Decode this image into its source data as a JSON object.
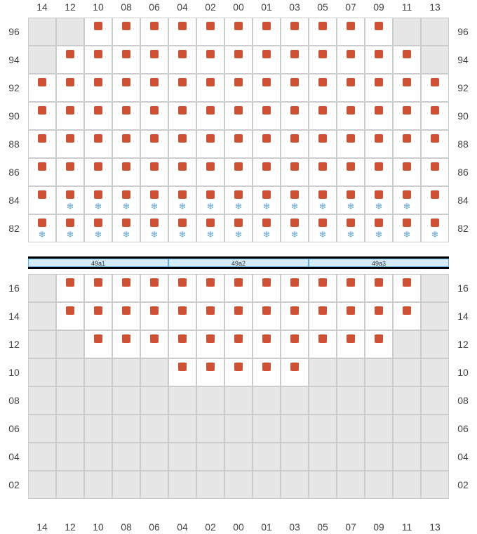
{
  "columns": [
    "14",
    "12",
    "10",
    "08",
    "06",
    "04",
    "02",
    "00",
    "01",
    "03",
    "05",
    "07",
    "09",
    "11",
    "13"
  ],
  "upper_rows": [
    "96",
    "94",
    "92",
    "90",
    "88",
    "86",
    "84",
    "82"
  ],
  "lower_rows": [
    "16",
    "14",
    "12",
    "10",
    "08",
    "06",
    "04",
    "02"
  ],
  "divider_segments": [
    "49a1",
    "49a2",
    "49a3"
  ],
  "colors": {
    "seat": "#cc5233",
    "cold": "#5fa8dd",
    "gray": "#e6e6e6",
    "grid_border": "#cccccc",
    "divider_bg": "#d4ecfa",
    "black": "#000000"
  },
  "symbols": {
    "snowflake": "❄"
  },
  "upper_grid": [
    {
      "row": "96",
      "cells": [
        {
          "t": "g"
        },
        {
          "t": "g"
        },
        {
          "t": "s"
        },
        {
          "t": "s"
        },
        {
          "t": "s"
        },
        {
          "t": "s"
        },
        {
          "t": "s"
        },
        {
          "t": "s"
        },
        {
          "t": "s"
        },
        {
          "t": "s"
        },
        {
          "t": "s"
        },
        {
          "t": "s"
        },
        {
          "t": "s"
        },
        {
          "t": "g"
        },
        {
          "t": "g"
        }
      ]
    },
    {
      "row": "94",
      "cells": [
        {
          "t": "g"
        },
        {
          "t": "s"
        },
        {
          "t": "s"
        },
        {
          "t": "s"
        },
        {
          "t": "s"
        },
        {
          "t": "s"
        },
        {
          "t": "s"
        },
        {
          "t": "s"
        },
        {
          "t": "s"
        },
        {
          "t": "s"
        },
        {
          "t": "s"
        },
        {
          "t": "s"
        },
        {
          "t": "s"
        },
        {
          "t": "s"
        },
        {
          "t": "g"
        }
      ]
    },
    {
      "row": "92",
      "cells": [
        {
          "t": "s"
        },
        {
          "t": "s"
        },
        {
          "t": "s"
        },
        {
          "t": "s"
        },
        {
          "t": "s"
        },
        {
          "t": "s"
        },
        {
          "t": "s"
        },
        {
          "t": "s"
        },
        {
          "t": "s"
        },
        {
          "t": "s"
        },
        {
          "t": "s"
        },
        {
          "t": "s"
        },
        {
          "t": "s"
        },
        {
          "t": "s"
        },
        {
          "t": "s"
        }
      ]
    },
    {
      "row": "90",
      "cells": [
        {
          "t": "s"
        },
        {
          "t": "s"
        },
        {
          "t": "s"
        },
        {
          "t": "s"
        },
        {
          "t": "s"
        },
        {
          "t": "s"
        },
        {
          "t": "s"
        },
        {
          "t": "s"
        },
        {
          "t": "s"
        },
        {
          "t": "s"
        },
        {
          "t": "s"
        },
        {
          "t": "s"
        },
        {
          "t": "s"
        },
        {
          "t": "s"
        },
        {
          "t": "s"
        }
      ]
    },
    {
      "row": "88",
      "cells": [
        {
          "t": "s"
        },
        {
          "t": "s"
        },
        {
          "t": "s"
        },
        {
          "t": "s"
        },
        {
          "t": "s"
        },
        {
          "t": "s"
        },
        {
          "t": "s"
        },
        {
          "t": "s"
        },
        {
          "t": "s"
        },
        {
          "t": "s"
        },
        {
          "t": "s"
        },
        {
          "t": "s"
        },
        {
          "t": "s"
        },
        {
          "t": "s"
        },
        {
          "t": "s"
        }
      ]
    },
    {
      "row": "86",
      "cells": [
        {
          "t": "s"
        },
        {
          "t": "s"
        },
        {
          "t": "s"
        },
        {
          "t": "s"
        },
        {
          "t": "s"
        },
        {
          "t": "s"
        },
        {
          "t": "s"
        },
        {
          "t": "s"
        },
        {
          "t": "s"
        },
        {
          "t": "s"
        },
        {
          "t": "s"
        },
        {
          "t": "s"
        },
        {
          "t": "s"
        },
        {
          "t": "s"
        },
        {
          "t": "s"
        }
      ]
    },
    {
      "row": "84",
      "cells": [
        {
          "t": "s"
        },
        {
          "t": "sc"
        },
        {
          "t": "sc"
        },
        {
          "t": "sc"
        },
        {
          "t": "sc"
        },
        {
          "t": "sc"
        },
        {
          "t": "sc"
        },
        {
          "t": "sc"
        },
        {
          "t": "sc"
        },
        {
          "t": "sc"
        },
        {
          "t": "sc"
        },
        {
          "t": "sc"
        },
        {
          "t": "sc"
        },
        {
          "t": "sc"
        },
        {
          "t": "s"
        }
      ]
    },
    {
      "row": "82",
      "cells": [
        {
          "t": "sc"
        },
        {
          "t": "sc"
        },
        {
          "t": "sc"
        },
        {
          "t": "sc"
        },
        {
          "t": "sc"
        },
        {
          "t": "sc"
        },
        {
          "t": "sc"
        },
        {
          "t": "sc"
        },
        {
          "t": "sc"
        },
        {
          "t": "sc"
        },
        {
          "t": "sc"
        },
        {
          "t": "sc"
        },
        {
          "t": "sc"
        },
        {
          "t": "sc"
        },
        {
          "t": "sc"
        }
      ]
    }
  ],
  "lower_grid": [
    {
      "row": "16",
      "cells": [
        {
          "t": "g"
        },
        {
          "t": "s"
        },
        {
          "t": "s"
        },
        {
          "t": "s"
        },
        {
          "t": "s"
        },
        {
          "t": "s"
        },
        {
          "t": "s"
        },
        {
          "t": "s"
        },
        {
          "t": "s"
        },
        {
          "t": "s"
        },
        {
          "t": "s"
        },
        {
          "t": "s"
        },
        {
          "t": "s"
        },
        {
          "t": "s"
        },
        {
          "t": "g"
        }
      ]
    },
    {
      "row": "14",
      "cells": [
        {
          "t": "g"
        },
        {
          "t": "s"
        },
        {
          "t": "s"
        },
        {
          "t": "s"
        },
        {
          "t": "s"
        },
        {
          "t": "s"
        },
        {
          "t": "s"
        },
        {
          "t": "s"
        },
        {
          "t": "s"
        },
        {
          "t": "s"
        },
        {
          "t": "s"
        },
        {
          "t": "s"
        },
        {
          "t": "s"
        },
        {
          "t": "s"
        },
        {
          "t": "g"
        }
      ]
    },
    {
      "row": "12",
      "cells": [
        {
          "t": "g"
        },
        {
          "t": "g"
        },
        {
          "t": "s"
        },
        {
          "t": "s"
        },
        {
          "t": "s"
        },
        {
          "t": "s"
        },
        {
          "t": "s"
        },
        {
          "t": "s"
        },
        {
          "t": "s"
        },
        {
          "t": "s"
        },
        {
          "t": "s"
        },
        {
          "t": "s"
        },
        {
          "t": "s"
        },
        {
          "t": "g"
        },
        {
          "t": "g"
        }
      ]
    },
    {
      "row": "10",
      "cells": [
        {
          "t": "g"
        },
        {
          "t": "g"
        },
        {
          "t": "g"
        },
        {
          "t": "g"
        },
        {
          "t": "g"
        },
        {
          "t": "s"
        },
        {
          "t": "s"
        },
        {
          "t": "s"
        },
        {
          "t": "s"
        },
        {
          "t": "s"
        },
        {
          "t": "g"
        },
        {
          "t": "g"
        },
        {
          "t": "g"
        },
        {
          "t": "g"
        },
        {
          "t": "g"
        }
      ]
    },
    {
      "row": "08",
      "cells": [
        {
          "t": "g"
        },
        {
          "t": "g"
        },
        {
          "t": "g"
        },
        {
          "t": "g"
        },
        {
          "t": "g"
        },
        {
          "t": "g"
        },
        {
          "t": "g"
        },
        {
          "t": "g"
        },
        {
          "t": "g"
        },
        {
          "t": "g"
        },
        {
          "t": "g"
        },
        {
          "t": "g"
        },
        {
          "t": "g"
        },
        {
          "t": "g"
        },
        {
          "t": "g"
        }
      ]
    },
    {
      "row": "06",
      "cells": [
        {
          "t": "g"
        },
        {
          "t": "g"
        },
        {
          "t": "g"
        },
        {
          "t": "g"
        },
        {
          "t": "g"
        },
        {
          "t": "g"
        },
        {
          "t": "g"
        },
        {
          "t": "g"
        },
        {
          "t": "g"
        },
        {
          "t": "g"
        },
        {
          "t": "g"
        },
        {
          "t": "g"
        },
        {
          "t": "g"
        },
        {
          "t": "g"
        },
        {
          "t": "g"
        }
      ]
    },
    {
      "row": "04",
      "cells": [
        {
          "t": "g"
        },
        {
          "t": "g"
        },
        {
          "t": "g"
        },
        {
          "t": "g"
        },
        {
          "t": "g"
        },
        {
          "t": "g"
        },
        {
          "t": "g"
        },
        {
          "t": "g"
        },
        {
          "t": "g"
        },
        {
          "t": "g"
        },
        {
          "t": "g"
        },
        {
          "t": "g"
        },
        {
          "t": "g"
        },
        {
          "t": "g"
        },
        {
          "t": "g"
        }
      ]
    },
    {
      "row": "02",
      "cells": [
        {
          "t": "g"
        },
        {
          "t": "g"
        },
        {
          "t": "g"
        },
        {
          "t": "g"
        },
        {
          "t": "g"
        },
        {
          "t": "g"
        },
        {
          "t": "g"
        },
        {
          "t": "g"
        },
        {
          "t": "g"
        },
        {
          "t": "g"
        },
        {
          "t": "g"
        },
        {
          "t": "g"
        },
        {
          "t": "g"
        },
        {
          "t": "g"
        },
        {
          "t": "g"
        }
      ]
    }
  ]
}
